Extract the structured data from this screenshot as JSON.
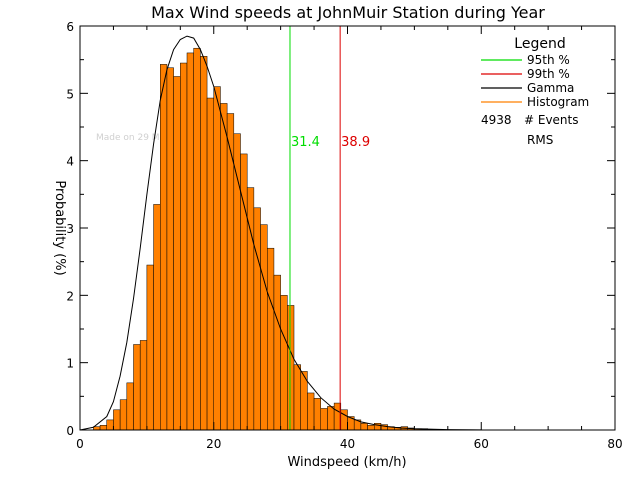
{
  "chart_data": {
    "type": "bar",
    "title": "Max Wind speeds at JohnMuir Station during Year",
    "xlabel": "Windspeed (km/h)",
    "ylabel": "Probability (%)",
    "xlim": [
      0,
      80
    ],
    "ylim": [
      0,
      6
    ],
    "xticks": [
      0,
      20,
      40,
      60,
      80
    ],
    "yticks": [
      0,
      1,
      2,
      3,
      4,
      5,
      6
    ],
    "grid": false,
    "legend_position": "top-right",
    "bin_width": 1,
    "bin_start": 2,
    "histogram_values": [
      0.05,
      0.07,
      0.15,
      0.3,
      0.45,
      0.7,
      1.27,
      1.33,
      2.45,
      3.35,
      5.43,
      5.38,
      5.25,
      5.45,
      5.6,
      5.67,
      5.55,
      4.93,
      5.1,
      4.85,
      4.7,
      4.4,
      4.1,
      3.6,
      3.3,
      3.05,
      2.7,
      2.3,
      2.0,
      1.85,
      0.97,
      0.87,
      0.55,
      0.47,
      0.32,
      0.35,
      0.4,
      0.3,
      0.2,
      0.15,
      0.1,
      0.07,
      0.1,
      0.08,
      0.05,
      0.04,
      0.05,
      0.03,
      0.02,
      0.02,
      0.01
    ],
    "gamma_curve": {
      "x": [
        0,
        2,
        4,
        5,
        6,
        7,
        8,
        9,
        10,
        11,
        12,
        13,
        14,
        15,
        16,
        17,
        18,
        19,
        20,
        22,
        24,
        26,
        28,
        30,
        32,
        34,
        36,
        38,
        40,
        42,
        44,
        46,
        48,
        50,
        55,
        60
      ],
      "y": [
        0,
        0.04,
        0.2,
        0.42,
        0.8,
        1.3,
        1.95,
        2.7,
        3.5,
        4.25,
        4.9,
        5.35,
        5.65,
        5.8,
        5.85,
        5.82,
        5.65,
        5.4,
        5.1,
        4.35,
        3.55,
        2.75,
        2.05,
        1.5,
        1.05,
        0.72,
        0.48,
        0.31,
        0.2,
        0.12,
        0.08,
        0.05,
        0.03,
        0.02,
        0.006,
        0.002
      ]
    },
    "percentile_lines": [
      {
        "name": "95th %",
        "value": 31.4,
        "label": "31.4",
        "color": "#00dd00"
      },
      {
        "name": "99th %",
        "value": 38.9,
        "label": "38.9",
        "color": "#dd0000"
      }
    ],
    "legend": {
      "title": "Legend",
      "entries": [
        {
          "label": "95th %",
          "color": "#00dd00"
        },
        {
          "label": "99th %",
          "color": "#dd0000"
        },
        {
          "label": "Gamma",
          "color": "#000000"
        },
        {
          "label": "Histogram",
          "color": "#ff8000"
        }
      ],
      "events_count": "4938",
      "events_label": "# Events",
      "rms_label": "RMS"
    },
    "watermark": "Made on 29 May 2025",
    "colors": {
      "histogram": "#ff8000",
      "gamma": "#000000"
    }
  }
}
